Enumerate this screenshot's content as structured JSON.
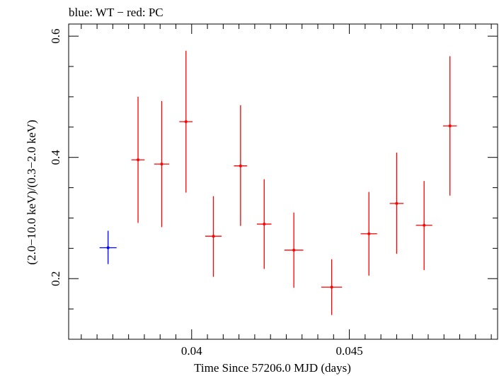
{
  "chart_data": {
    "type": "scatter",
    "title": "blue: WT − red: PC",
    "xlabel": "Time Since 57206.0 MJD (days)",
    "ylabel": "(2.0−10.0 keV)/(0.3−2.0 keV)",
    "xlim": [
      0.0361,
      0.0497
    ],
    "ylim": [
      0.1,
      0.62
    ],
    "x_ticks": [
      {
        "value": 0.04,
        "label": "0.04"
      },
      {
        "value": 0.045,
        "label": "0.045"
      }
    ],
    "y_ticks": [
      {
        "value": 0.2,
        "label": "0.2"
      },
      {
        "value": 0.4,
        "label": "0.4"
      },
      {
        "value": 0.6,
        "label": "0.6"
      }
    ],
    "grid": false,
    "series": [
      {
        "name": "WT",
        "color": "#0000ff",
        "points": [
          {
            "x": 0.03735,
            "xerr": 0.00027,
            "y": 0.251,
            "yerr_lo": 0.027,
            "yerr_hi": 0.028
          }
        ]
      },
      {
        "name": "PC",
        "color": "#ff0000",
        "points": [
          {
            "x": 0.0383,
            "xerr": 0.00021,
            "y": 0.396,
            "yerr_lo": 0.104,
            "yerr_hi": 0.104
          },
          {
            "x": 0.03905,
            "xerr": 0.00024,
            "y": 0.389,
            "yerr_lo": 0.104,
            "yerr_hi": 0.104
          },
          {
            "x": 0.03982,
            "xerr": 0.00021,
            "y": 0.459,
            "yerr_lo": 0.117,
            "yerr_hi": 0.117
          },
          {
            "x": 0.04069,
            "xerr": 0.00026,
            "y": 0.27,
            "yerr_lo": 0.067,
            "yerr_hi": 0.066
          },
          {
            "x": 0.04155,
            "xerr": 0.00021,
            "y": 0.386,
            "yerr_lo": 0.099,
            "yerr_hi": 0.1
          },
          {
            "x": 0.0423,
            "xerr": 0.00023,
            "y": 0.29,
            "yerr_lo": 0.074,
            "yerr_hi": 0.074
          },
          {
            "x": 0.04324,
            "xerr": 0.0003,
            "y": 0.247,
            "yerr_lo": 0.062,
            "yerr_hi": 0.062
          },
          {
            "x": 0.04444,
            "xerr": 0.00033,
            "y": 0.186,
            "yerr_lo": 0.046,
            "yerr_hi": 0.046
          },
          {
            "x": 0.04562,
            "xerr": 0.00026,
            "y": 0.274,
            "yerr_lo": 0.069,
            "yerr_hi": 0.069
          },
          {
            "x": 0.0465,
            "xerr": 0.00022,
            "y": 0.324,
            "yerr_lo": 0.083,
            "yerr_hi": 0.084
          },
          {
            "x": 0.04737,
            "xerr": 0.00026,
            "y": 0.288,
            "yerr_lo": 0.074,
            "yerr_hi": 0.073
          },
          {
            "x": 0.04819,
            "xerr": 0.00022,
            "y": 0.452,
            "yerr_lo": 0.115,
            "yerr_hi": 0.115
          }
        ]
      }
    ]
  }
}
